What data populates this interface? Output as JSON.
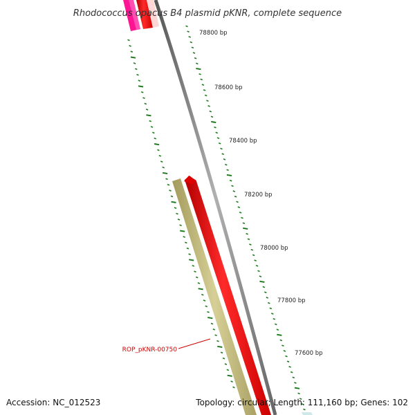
{
  "title": "Rhodococcus opacus B4 plasmid pKNR, complete sequence",
  "footer": {
    "accession": "Accession: NC_012523",
    "summary": "Topology: circular; Length: 111,160 bp; Genes: 102"
  },
  "genes": [
    {
      "label": "ROP_pKNR-00750",
      "strand": "minus",
      "color": "#c8c084"
    },
    {
      "label": "",
      "strand": "plus",
      "color": "#ff0000"
    }
  ],
  "colors": {
    "backbone": "#7a7a7a",
    "tick": "#1e7a1e",
    "forward_gene": "#ff0000",
    "reverse_gene": "#c8c084",
    "pink_gene": "#ff1493",
    "label_line": "#cc0000"
  },
  "ticks": [
    {
      "label": "78800 bp"
    },
    {
      "label": "78600 bp"
    },
    {
      "label": "78400 bp"
    },
    {
      "label": "78200 bp"
    },
    {
      "label": "78000 bp"
    },
    {
      "label": "77800 bp"
    },
    {
      "label": "77600 bp"
    }
  ]
}
